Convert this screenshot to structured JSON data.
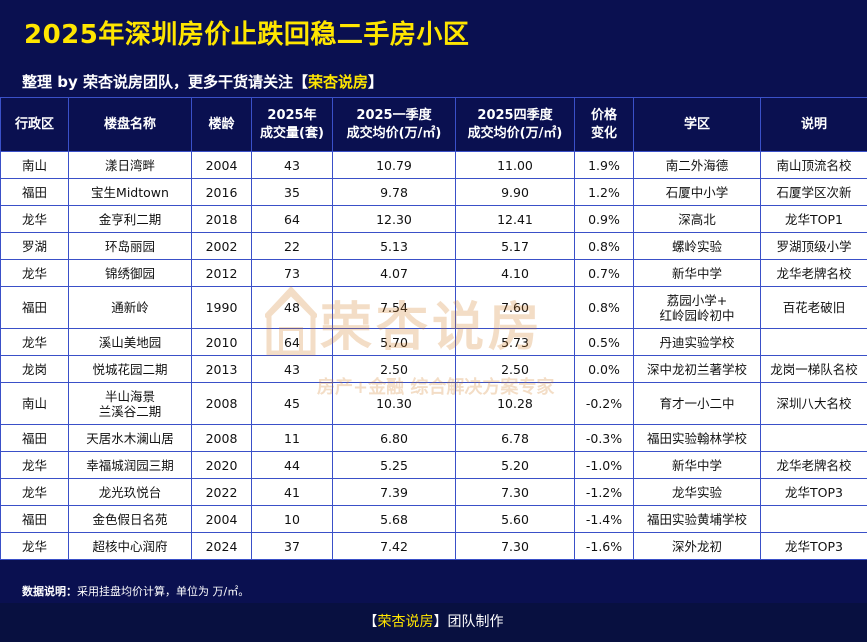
{
  "title": "2025年深圳房价止跌回稳二手房小区",
  "subtitle": {
    "prefix": "整理 by 荣杏说房团队，更多干货请关注【",
    "brand": "荣杏说房",
    "suffix": "】"
  },
  "headers": [
    {
      "l1": "行政区",
      "l2": ""
    },
    {
      "l1": "楼盘名称",
      "l2": ""
    },
    {
      "l1": "楼龄",
      "l2": ""
    },
    {
      "l1": "2025年",
      "l2": "成交量(套)"
    },
    {
      "l1": "2025一季度",
      "l2": "成交均价(万/㎡)"
    },
    {
      "l1": "2025四季度",
      "l2": "成交均价(万/㎡)"
    },
    {
      "l1": "价格",
      "l2": "变化"
    },
    {
      "l1": "学区",
      "l2": ""
    },
    {
      "l1": "说明",
      "l2": ""
    }
  ],
  "rows": [
    {
      "district": "南山",
      "estate": "漾日湾畔",
      "estate2": "",
      "age": "2004",
      "volume": "43",
      "q1": "10.79",
      "q4": "11.00",
      "change": "1.9%",
      "school": "南二外海德",
      "school2": "",
      "note": "南山顶流名校"
    },
    {
      "district": "福田",
      "estate": "宝生Midtown",
      "estate2": "",
      "age": "2016",
      "volume": "35",
      "q1": "9.78",
      "q4": "9.90",
      "change": "1.2%",
      "school": "石厦中小学",
      "school2": "",
      "note": "石厦学区次新"
    },
    {
      "district": "龙华",
      "estate": "金亨利二期",
      "estate2": "",
      "age": "2018",
      "volume": "64",
      "q1": "12.30",
      "q4": "12.41",
      "change": "0.9%",
      "school": "深高北",
      "school2": "",
      "note": "龙华TOP1"
    },
    {
      "district": "罗湖",
      "estate": "环岛丽园",
      "estate2": "",
      "age": "2002",
      "volume": "22",
      "q1": "5.13",
      "q4": "5.17",
      "change": "0.8%",
      "school": "螺岭实验",
      "school2": "",
      "note": "罗湖顶级小学"
    },
    {
      "district": "龙华",
      "estate": "锦绣御园",
      "estate2": "",
      "age": "2012",
      "volume": "73",
      "q1": "4.07",
      "q4": "4.10",
      "change": "0.7%",
      "school": "新华中学",
      "school2": "",
      "note": "龙华老牌名校"
    },
    {
      "district": "福田",
      "estate": "通新岭",
      "estate2": "",
      "age": "1990",
      "volume": "48",
      "q1": "7.54",
      "q4": "7.60",
      "change": "0.8%",
      "school": "荔园小学+",
      "school2": "红岭园岭初中",
      "note": "百花老破旧"
    },
    {
      "district": "龙华",
      "estate": "溪山美地园",
      "estate2": "",
      "age": "2010",
      "volume": "64",
      "q1": "5.70",
      "q4": "5.73",
      "change": "0.5%",
      "school": "丹迪实验学校",
      "school2": "",
      "note": ""
    },
    {
      "district": "龙岗",
      "estate": "悦城花园二期",
      "estate2": "",
      "age": "2013",
      "volume": "43",
      "q1": "2.50",
      "q4": "2.50",
      "change": "0.0%",
      "school": "深中龙初兰著学校",
      "school2": "",
      "note": "龙岗一梯队名校"
    },
    {
      "district": "南山",
      "estate": "半山海景",
      "estate2": "兰溪谷二期",
      "age": "2008",
      "volume": "45",
      "q1": "10.30",
      "q4": "10.28",
      "change": "-0.2%",
      "school": "育才一小二中",
      "school2": "",
      "note": "深圳八大名校"
    },
    {
      "district": "福田",
      "estate": "天居水木澜山居",
      "estate2": "",
      "age": "2008",
      "volume": "11",
      "q1": "6.80",
      "q4": "6.78",
      "change": "-0.3%",
      "school": "福田实验翰林学校",
      "school2": "",
      "note": ""
    },
    {
      "district": "龙华",
      "estate": "幸福城润园三期",
      "estate2": "",
      "age": "2020",
      "volume": "44",
      "q1": "5.25",
      "q4": "5.20",
      "change": "-1.0%",
      "school": "新华中学",
      "school2": "",
      "note": "龙华老牌名校"
    },
    {
      "district": "龙华",
      "estate": "龙光玖悦台",
      "estate2": "",
      "age": "2022",
      "volume": "41",
      "q1": "7.39",
      "q4": "7.30",
      "change": "-1.2%",
      "school": "龙华实验",
      "school2": "",
      "note": "龙华TOP3"
    },
    {
      "district": "福田",
      "estate": "金色假日名苑",
      "estate2": "",
      "age": "2004",
      "volume": "10",
      "q1": "5.68",
      "q4": "5.60",
      "change": "-1.4%",
      "school": "福田实验黄埔学校",
      "school2": "",
      "note": ""
    },
    {
      "district": "龙华",
      "estate": "超核中心润府",
      "estate2": "",
      "age": "2024",
      "volume": "37",
      "q1": "7.42",
      "q4": "7.30",
      "change": "-1.6%",
      "school": "深外龙初",
      "school2": "",
      "note": "龙华TOP3"
    }
  ],
  "data_note": {
    "label": "数据说明：",
    "text": "采用挂盘均价计算，单位为 万/㎡。"
  },
  "footer": {
    "prefix": "【",
    "brand": "荣杏说房",
    "suffix": "】团队制作"
  },
  "watermark": {
    "brand": "荣杏说房",
    "tagline": "房产+金融 综合解决方案专家"
  }
}
